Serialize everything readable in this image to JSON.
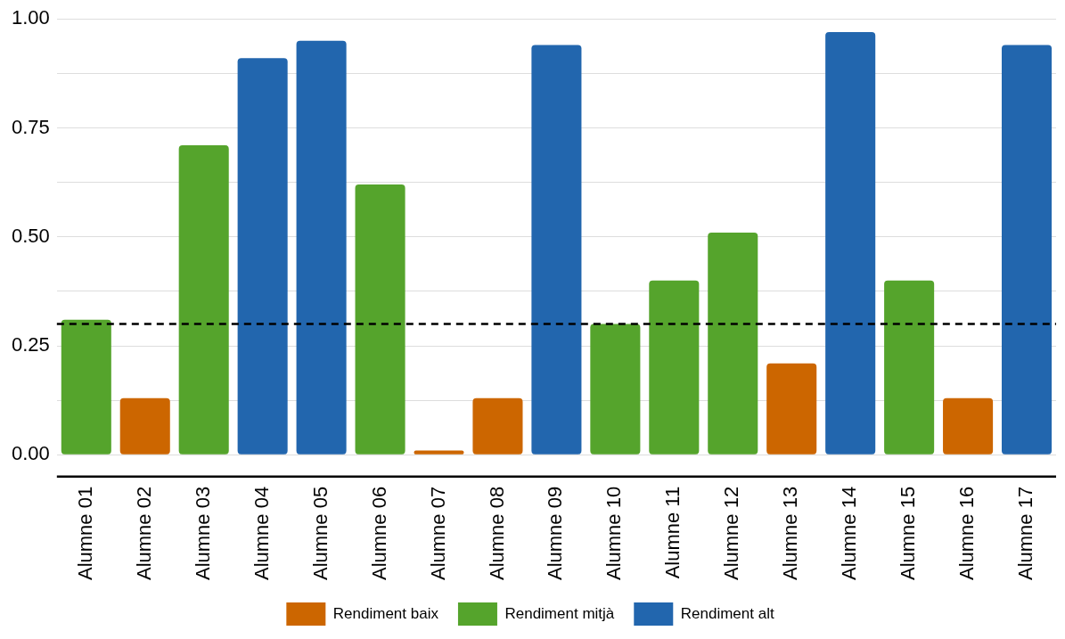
{
  "chart_data": {
    "type": "bar",
    "categories": [
      "Alumne 01",
      "Alumne 02",
      "Alumne 03",
      "Alumne 04",
      "Alumne 05",
      "Alumne 06",
      "Alumne 07",
      "Alumne 08",
      "Alumne 09",
      "Alumne 10",
      "Alumne 11",
      "Alumne 12",
      "Alumne 13",
      "Alumne 14",
      "Alumne 15",
      "Alumne 16",
      "Alumne 17"
    ],
    "series": [
      {
        "name": "Rendiment baix",
        "color": "#cc6600",
        "values": [
          null,
          0.13,
          null,
          null,
          null,
          null,
          0.01,
          0.13,
          null,
          null,
          null,
          null,
          0.21,
          null,
          null,
          0.13,
          null
        ]
      },
      {
        "name": "Rendiment mitjà",
        "color": "#55a42c",
        "values": [
          0.31,
          null,
          0.71,
          null,
          null,
          0.62,
          null,
          null,
          null,
          0.3,
          0.4,
          0.51,
          null,
          null,
          0.4,
          null,
          null
        ]
      },
      {
        "name": "Rendiment alt",
        "color": "#2266ae",
        "values": [
          null,
          null,
          null,
          0.91,
          0.95,
          null,
          null,
          null,
          0.94,
          null,
          null,
          null,
          null,
          0.97,
          null,
          null,
          0.94
        ]
      }
    ],
    "ylim": [
      -0.05,
      1.0
    ],
    "yticks": [
      {
        "value": 0,
        "label": "0.00"
      },
      {
        "value": 0.125,
        "label": null
      },
      {
        "value": 0.25,
        "label": "0.25"
      },
      {
        "value": 0.375,
        "label": null
      },
      {
        "value": 0.5,
        "label": "0.50"
      },
      {
        "value": 0.625,
        "label": null
      },
      {
        "value": 0.75,
        "label": "0.75"
      },
      {
        "value": 0.875,
        "label": null
      },
      {
        "value": 1,
        "label": "1.00"
      }
    ],
    "ref_lines": [
      {
        "axis": "y",
        "value": 0.3,
        "label": null,
        "color": "#000000",
        "line_style": "dashed"
      }
    ],
    "grid": "y",
    "legend": "bottom"
  }
}
